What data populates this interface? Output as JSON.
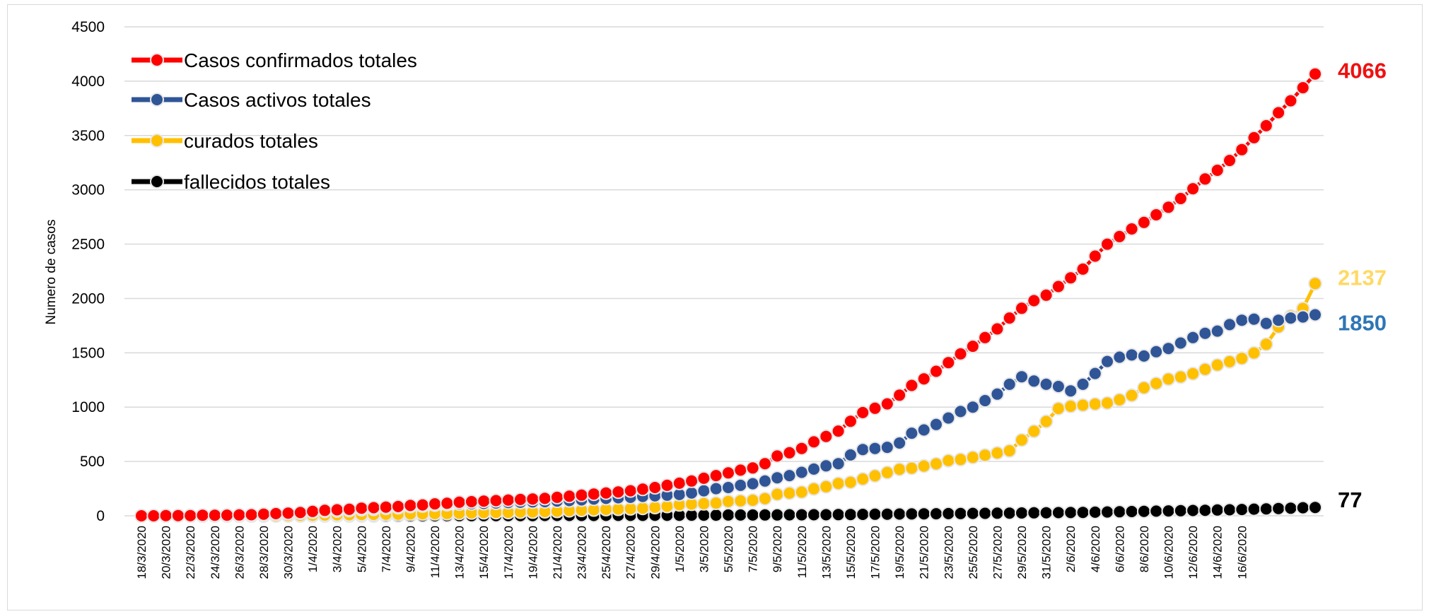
{
  "chart_data": {
    "type": "line",
    "title": "",
    "xlabel": "",
    "ylabel": "Numero de casos",
    "ylim": [
      0,
      4500
    ],
    "yticks": [
      0,
      500,
      1000,
      1500,
      2000,
      2500,
      3000,
      3500,
      4000,
      4500
    ],
    "grid": "horizontal",
    "legend_position": "top-left",
    "x_labels": [
      "18/3/2020",
      "20/3/2020",
      "22/3/2020",
      "24/3/2020",
      "26/3/2020",
      "28/3/2020",
      "30/3/2020",
      "1/4/2020",
      "3/4/2020",
      "5/4/2020",
      "7/4/2020",
      "9/4/2020",
      "11/4/2020",
      "13/4/2020",
      "15/4/2020",
      "17/4/2020",
      "19/4/2020",
      "21/4/2020",
      "23/4/2020",
      "25/4/2020",
      "27/4/2020",
      "29/4/2020",
      "1/5/2020",
      "3/5/2020",
      "5/5/2020",
      "7/5/2020",
      "9/5/2020",
      "11/5/2020",
      "13/5/2020",
      "15/5/2020",
      "17/5/2020",
      "19/5/2020",
      "21/5/2020",
      "23/5/2020",
      "25/5/2020",
      "27/5/2020",
      "29/5/2020",
      "31/5/2020",
      "2/6/2020",
      "4/6/2020",
      "6/6/2020",
      "8/6/2020",
      "10/6/2020",
      "12/6/2020",
      "14/6/2020",
      "16/6/2020"
    ],
    "series": [
      {
        "name": "Casos confirmados totales",
        "color": "#ff0000",
        "end_label": "4066",
        "end_label_color": "#ee1111",
        "values": [
          0,
          0,
          2,
          2,
          2,
          5,
          5,
          6,
          8,
          10,
          15,
          20,
          25,
          30,
          40,
          50,
          55,
          60,
          70,
          75,
          80,
          85,
          95,
          100,
          110,
          115,
          125,
          130,
          135,
          140,
          145,
          150,
          155,
          160,
          170,
          180,
          190,
          200,
          210,
          220,
          230,
          245,
          260,
          280,
          300,
          320,
          345,
          370,
          395,
          420,
          440,
          480,
          550,
          580,
          620,
          680,
          730,
          780,
          870,
          950,
          990,
          1030,
          1110,
          1200,
          1260,
          1330,
          1410,
          1490,
          1560,
          1640,
          1720,
          1820,
          1910,
          1980,
          2030,
          2110,
          2190,
          2270,
          2390,
          2500,
          2570,
          2640,
          2700,
          2770,
          2840,
          2920,
          3010,
          3100,
          3180,
          3270,
          3370,
          3480,
          3590,
          3710,
          3820,
          3940,
          4066
        ]
      },
      {
        "name": "Casos activos totales",
        "color": "#2f5597",
        "end_label": "1850",
        "end_label_color": "#2e75b6",
        "values": [
          0,
          0,
          2,
          2,
          2,
          5,
          5,
          6,
          8,
          10,
          14,
          18,
          22,
          26,
          34,
          42,
          46,
          50,
          58,
          62,
          70,
          76,
          88,
          92,
          100,
          104,
          110,
          112,
          114,
          118,
          122,
          124,
          128,
          130,
          136,
          140,
          146,
          154,
          160,
          166,
          170,
          178,
          184,
          190,
          196,
          210,
          230,
          250,
          260,
          280,
          295,
          320,
          350,
          370,
          400,
          430,
          460,
          480,
          560,
          610,
          620,
          630,
          670,
          760,
          790,
          840,
          900,
          960,
          1000,
          1060,
          1120,
          1210,
          1280,
          1240,
          1210,
          1190,
          1150,
          1210,
          1310,
          1420,
          1460,
          1480,
          1470,
          1510,
          1540,
          1590,
          1640,
          1680,
          1700,
          1760,
          1800,
          1810,
          1770,
          1800,
          1820,
          1830,
          1850
        ]
      },
      {
        "name": "curados totales",
        "color": "#ffc000",
        "end_label": "2137",
        "end_label_color": "#ffd966",
        "values": [
          0,
          0,
          0,
          0,
          0,
          0,
          0,
          0,
          0,
          0,
          1,
          2,
          3,
          4,
          6,
          8,
          9,
          10,
          12,
          13,
          14,
          15,
          17,
          18,
          20,
          21,
          24,
          27,
          30,
          31,
          32,
          35,
          36,
          39,
          42,
          48,
          52,
          55,
          59,
          62,
          66,
          70,
          78,
          88,
          102,
          108,
          112,
          117,
          132,
          137,
          143,
          158,
          198,
          208,
          218,
          248,
          268,
          298,
          308,
          338,
          368,
          398,
          428,
          438,
          458,
          478,
          508,
          518,
          538,
          558,
          578,
          598,
          698,
          778,
          868,
          988,
          1008,
          1018,
          1028,
          1038,
          1068,
          1108,
          1178,
          1218,
          1258,
          1278,
          1308,
          1348,
          1388,
          1418,
          1448,
          1498,
          1578,
          1738,
          1838,
          1908,
          2137
        ]
      },
      {
        "name": "fallecidos totales",
        "color": "#000000",
        "end_label": "77",
        "end_label_color": "#000000",
        "values": [
          0,
          0,
          0,
          0,
          0,
          0,
          0,
          0,
          0,
          0,
          0,
          0,
          0,
          0,
          0,
          0,
          0,
          0,
          0,
          0,
          0,
          0,
          0,
          0,
          0,
          1,
          1,
          1,
          1,
          2,
          2,
          2,
          2,
          3,
          3,
          3,
          3,
          3,
          4,
          4,
          4,
          4,
          5,
          5,
          5,
          6,
          6,
          6,
          7,
          7,
          7,
          8,
          8,
          9,
          9,
          10,
          10,
          11,
          12,
          13,
          14,
          15,
          16,
          17,
          18,
          19,
          20,
          21,
          22,
          23,
          24,
          25,
          26,
          27,
          28,
          29,
          30,
          31,
          33,
          35,
          37,
          39,
          41,
          43,
          45,
          47,
          49,
          51,
          53,
          55,
          58,
          61,
          64,
          67,
          70,
          74,
          77
        ]
      }
    ]
  }
}
